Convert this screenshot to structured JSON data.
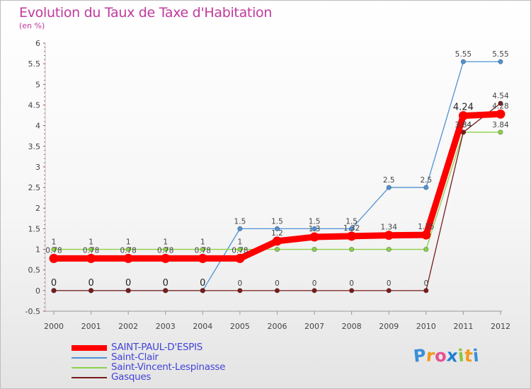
{
  "header": {
    "title": "Evolution du Taux de Taxe d'Habitation",
    "subtitle": "(en %)"
  },
  "colors": {
    "title": "#c0399b",
    "legend_text": "#4343d8"
  },
  "logo": {
    "letters": [
      {
        "char": "P",
        "color": "#3a8fd8"
      },
      {
        "char": "r",
        "color": "#f29a1d"
      },
      {
        "char": "o",
        "color": "#e84f93"
      },
      {
        "char": "x",
        "color": "#1f7fd1"
      },
      {
        "char": "i",
        "color": "#8bc53f"
      },
      {
        "char": "t",
        "color": "#f29a1d"
      },
      {
        "char": "i",
        "color": "#3a8fd8"
      }
    ]
  },
  "chart_data": {
    "type": "line",
    "title": "Evolution du Taux de Taxe d'Habitation",
    "subtitle": "(en %)",
    "x": [
      "2000",
      "2001",
      "2002",
      "2003",
      "2004",
      "2005",
      "2006",
      "2007",
      "2008",
      "2009",
      "2010",
      "2011",
      "2012"
    ],
    "ylim": [
      -0.5,
      6
    ],
    "yticks": [
      "-0.5",
      "0",
      "0.5",
      "1",
      "1.5",
      "2",
      "2.5",
      "3",
      "3.5",
      "4",
      "4.5",
      "5",
      "5.5",
      "6"
    ],
    "grid": false,
    "legend_position": "bottom-left",
    "series": [
      {
        "name": "SAINT-PAUL-D'ESPIS",
        "color": "#ff0000",
        "emphasis": true,
        "values": [
          0.78,
          0.78,
          0.78,
          0.78,
          0.78,
          0.78,
          1.2,
          1.3,
          1.32,
          1.34,
          1.35,
          4.24,
          4.28
        ],
        "labels": [
          "0.78",
          "0.78",
          "0.78",
          "0.78",
          "0.78",
          "0.78",
          "1.2",
          "1.3",
          "1.32",
          "1.34",
          "1.35",
          "4.24",
          "4.28"
        ]
      },
      {
        "name": "Saint-Clair",
        "color": "#4f92d4",
        "emphasis": false,
        "values": [
          0,
          0,
          0,
          0,
          0,
          1.5,
          1.5,
          1.5,
          1.5,
          2.5,
          2.5,
          5.55,
          5.55
        ],
        "labels": [
          "",
          "",
          "",
          "",
          "",
          "1.5",
          "1.5",
          "1.5",
          "1.5",
          "2.5",
          "2.5",
          "5.55",
          "5.55"
        ]
      },
      {
        "name": "Saint-Vincent-Lespinasse",
        "color": "#8ad14a",
        "emphasis": false,
        "values": [
          1,
          1,
          1,
          1,
          1,
          1,
          1,
          1,
          1,
          1,
          1,
          3.84,
          3.84
        ],
        "labels": [
          "1",
          "1",
          "1",
          "1",
          "1",
          "1",
          "",
          "",
          "",
          "",
          "",
          "3.84",
          "3.84"
        ]
      },
      {
        "name": "Gasques",
        "color": "#7a1b1b",
        "emphasis": false,
        "values": [
          0,
          0,
          0,
          0,
          0,
          0,
          0,
          0,
          0,
          0,
          0,
          3.84,
          4.54
        ],
        "labels": [
          "0",
          "0",
          "0",
          "0",
          "0",
          "0",
          "0",
          "0",
          "0",
          "0",
          "0",
          "3.84",
          "4.54"
        ]
      }
    ]
  }
}
